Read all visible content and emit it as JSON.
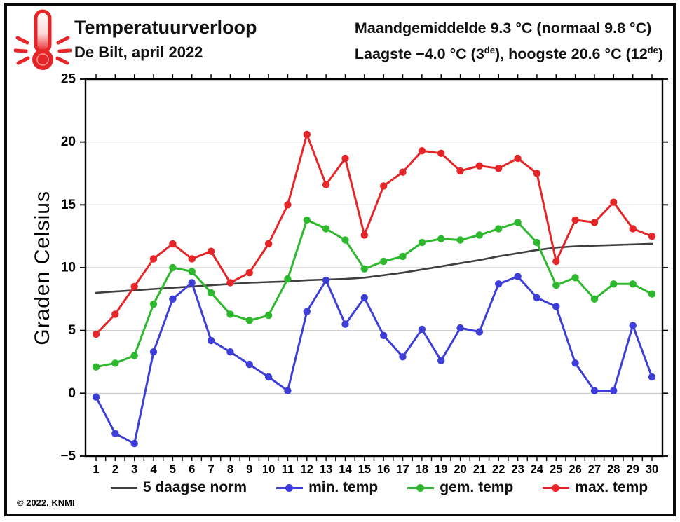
{
  "header": {
    "title": "Temperatuurverloop",
    "subtitle": "De Bilt, april 2022",
    "stats_line1": "Maandgemiddelde 9.3 °C (normaal 9.8 °C)",
    "stats_line2": {
      "p1": "Laagste −4.0 °C (3",
      "s1": "de",
      "p2": "), hoogste 20.6 °C (12",
      "s2": "de",
      "p3": ")"
    }
  },
  "footer": {
    "copyright": "© 2022, KNMI"
  },
  "icon": {
    "name": "thermometer-icon",
    "color": "#e62528"
  },
  "colors": {
    "max": "#e62528",
    "gem": "#2eb82e",
    "min": "#3d3dd8",
    "norm": "#3f3f3f",
    "grid": "#c9c9c9",
    "axis": "#000000"
  },
  "chart_data": {
    "type": "line",
    "title": "Temperatuurverloop De Bilt, april 2022",
    "annotations": [
      "Maandgemiddelde 9.3 °C (normaal 9.8 °C)",
      "Laagste −4.0 °C (3de), hoogste 20.6 °C (12de)"
    ],
    "xlabel": "",
    "ylabel": "Graden Celsius",
    "ylim": [
      -5,
      25
    ],
    "yticks": [
      25,
      20,
      15,
      10,
      5,
      0,
      -5
    ],
    "grid": "horizontal",
    "legend_position": "bottom",
    "x": [
      1,
      2,
      3,
      4,
      5,
      6,
      7,
      8,
      9,
      10,
      11,
      12,
      13,
      14,
      15,
      16,
      17,
      18,
      19,
      20,
      21,
      22,
      23,
      24,
      25,
      26,
      27,
      28,
      29,
      30
    ],
    "series": [
      {
        "name": "5 daagse norm",
        "color": "#3f3f3f",
        "marker": false,
        "values": [
          8.0,
          8.1,
          8.2,
          8.3,
          8.4,
          8.5,
          8.6,
          8.7,
          8.8,
          8.85,
          8.9,
          9.0,
          9.05,
          9.1,
          9.2,
          9.4,
          9.6,
          9.85,
          10.1,
          10.35,
          10.6,
          10.9,
          11.15,
          11.4,
          11.6,
          11.7,
          11.75,
          11.8,
          11.85,
          11.9
        ]
      },
      {
        "name": "min. temp",
        "color": "#3d3dd8",
        "marker": true,
        "values": [
          -0.3,
          -3.2,
          -4.0,
          3.3,
          7.5,
          8.8,
          4.2,
          3.3,
          2.3,
          1.3,
          0.2,
          6.5,
          9.0,
          5.5,
          7.6,
          4.6,
          2.9,
          5.1,
          2.6,
          5.2,
          4.9,
          8.7,
          9.3,
          7.6,
          6.9,
          2.4,
          0.2,
          0.2,
          5.4,
          1.3
        ]
      },
      {
        "name": "gem. temp",
        "color": "#2eb82e",
        "marker": true,
        "values": [
          2.1,
          2.4,
          3.0,
          7.1,
          10.0,
          9.7,
          8.0,
          6.3,
          5.8,
          6.2,
          9.1,
          13.8,
          13.1,
          12.2,
          9.9,
          10.5,
          10.9,
          12.0,
          12.3,
          12.2,
          12.6,
          13.1,
          13.6,
          12.0,
          8.6,
          9.2,
          7.5,
          8.7,
          8.7,
          7.9
        ]
      },
      {
        "name": "max. temp",
        "color": "#e62528",
        "marker": true,
        "values": [
          4.7,
          6.3,
          8.5,
          10.7,
          11.9,
          10.7,
          11.3,
          8.8,
          9.6,
          11.9,
          15.0,
          20.6,
          16.6,
          18.7,
          12.6,
          16.5,
          17.6,
          19.3,
          19.1,
          17.7,
          18.1,
          17.9,
          18.7,
          17.5,
          10.5,
          13.8,
          13.6,
          15.2,
          13.1,
          12.5
        ]
      }
    ]
  }
}
